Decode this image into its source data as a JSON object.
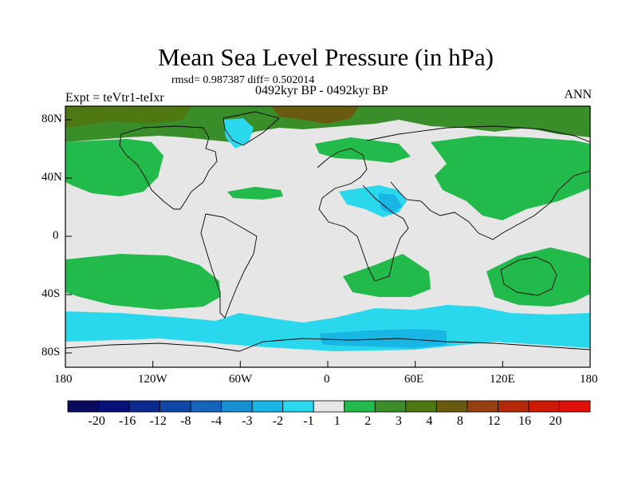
{
  "title": "Mean Sea Level Pressure (in hPa)",
  "stats": "rmsd= 0.987387 diff= 0.502014",
  "experiment": "Expt = teVtr1-teIxr",
  "period": "0492kyr BP - 0492kyr BP",
  "season": "ANN",
  "lat_ticks": [
    "80N",
    "40N",
    "0",
    "40S",
    "80S"
  ],
  "lon_ticks": [
    "180",
    "120W",
    "60W",
    "0",
    "60E",
    "120E",
    "180"
  ],
  "colorbar": {
    "labels": [
      "-20",
      "-16",
      "-12",
      "-8",
      "-4",
      "-3",
      "-2",
      "-1",
      "1",
      "2",
      "3",
      "4",
      "8",
      "12",
      "16",
      "20"
    ],
    "colors": [
      "#0a0a5e",
      "#08107a",
      "#0c2a8e",
      "#1046a6",
      "#1464be",
      "#1690d2",
      "#18b6e4",
      "#2ad8ee",
      "#e6e6e6",
      "#22ba4a",
      "#3a8e2a",
      "#4e7812",
      "#6a5a10",
      "#944010",
      "#b42a08",
      "#cc1a04",
      "#e01008"
    ]
  }
}
